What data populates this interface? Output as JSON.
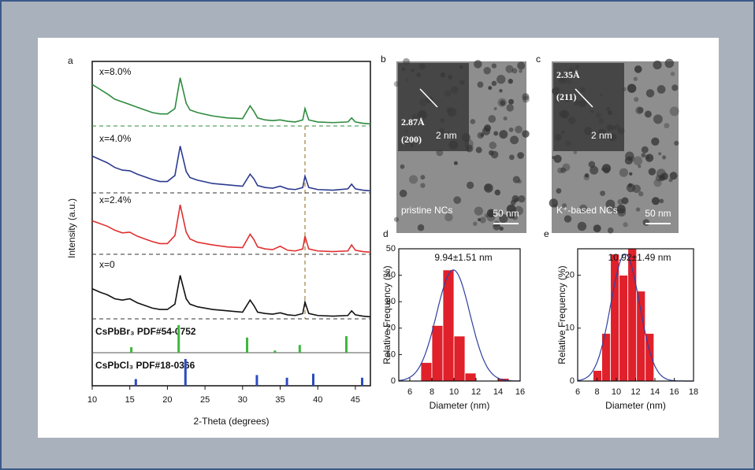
{
  "chart_data": [
    {
      "type": "line",
      "panel_label": "a",
      "x_label": "2-Theta (degrees)",
      "y_label": "Intensity (a.u.)",
      "xlim": [
        10,
        47
      ],
      "xticks": [
        10,
        15,
        20,
        25,
        30,
        35,
        40,
        45
      ],
      "ylim": [
        0,
        100
      ],
      "x": [
        10,
        11,
        12,
        13,
        14,
        15,
        16,
        17,
        18,
        19,
        20,
        21,
        21.7,
        22.5,
        23,
        24,
        26,
        28,
        30,
        31,
        31.5,
        32,
        33,
        34,
        35,
        36,
        37,
        38,
        38.3,
        38.8,
        40,
        42,
        44,
        44.5,
        45,
        46,
        47
      ],
      "marker_line_x": 38.3,
      "series": [
        {
          "name": "x=8.0%",
          "color": "#2e8b3e",
          "values": [
            62,
            55,
            48,
            40,
            36,
            32,
            28,
            24,
            20,
            18,
            18,
            26,
            72,
            34,
            24,
            20,
            15,
            12,
            11,
            30,
            22,
            12,
            9,
            8,
            9,
            7,
            6,
            9,
            26,
            9,
            6,
            5,
            6,
            12,
            6,
            4,
            3
          ]
        },
        {
          "name": "x=4.0%",
          "color": "#2c3a8f",
          "values": [
            55,
            50,
            45,
            38,
            34,
            33,
            28,
            24,
            20,
            17,
            17,
            26,
            70,
            32,
            23,
            19,
            14,
            12,
            10,
            28,
            21,
            11,
            8,
            7,
            10,
            6,
            5,
            8,
            25,
            8,
            5,
            4,
            6,
            13,
            6,
            4,
            3
          ]
        },
        {
          "name": "x=2.4%",
          "color": "#e03030",
          "values": [
            50,
            46,
            42,
            36,
            32,
            33,
            27,
            23,
            19,
            16,
            16,
            28,
            74,
            33,
            23,
            18,
            14,
            11,
            10,
            30,
            22,
            11,
            8,
            7,
            12,
            6,
            5,
            8,
            27,
            8,
            5,
            4,
            5,
            14,
            6,
            4,
            3
          ]
        },
        {
          "name": "x=0",
          "color": "#111111",
          "values": [
            45,
            40,
            36,
            30,
            28,
            30,
            24,
            20,
            16,
            14,
            14,
            22,
            65,
            30,
            22,
            18,
            14,
            12,
            10,
            28,
            20,
            10,
            8,
            7,
            9,
            6,
            5,
            8,
            25,
            8,
            5,
            4,
            5,
            12,
            6,
            4,
            3
          ]
        }
      ],
      "reference_patterns": [
        {
          "name": "CsPbBr₃ PDF#54-0752",
          "color": "#3cb83c",
          "positions": [
            15.2,
            21.5,
            30.6,
            34.3,
            37.6,
            43.8
          ],
          "heights": [
            20,
            100,
            55,
            8,
            28,
            60
          ]
        },
        {
          "name": "CsPbCl₃ PDF#18-0366",
          "color": "#2c4bc0",
          "positions": [
            15.8,
            22.4,
            31.9,
            35.9,
            39.4,
            45.9
          ],
          "heights": [
            25,
            100,
            40,
            30,
            45,
            30
          ]
        }
      ]
    },
    {
      "type": "histogram",
      "panel_label": "d",
      "x_label": "Diameter (nm)",
      "y_label": "Relative Frequency (%)",
      "annotation": "9.94±1.51 nm",
      "xlim": [
        5,
        16
      ],
      "xticks": [
        6,
        8,
        10,
        12,
        14,
        16
      ],
      "ylim": [
        0,
        50
      ],
      "yticks": [
        0,
        10,
        20,
        30,
        40,
        50
      ],
      "bins": [
        7,
        8,
        9,
        10,
        11,
        12,
        13,
        14,
        15
      ],
      "counts": [
        7,
        21,
        42,
        17,
        3,
        0,
        0,
        1
      ],
      "color": "#e0202a",
      "fit": {
        "mean": 9.94,
        "sd": 1.51,
        "peak": 42
      }
    },
    {
      "type": "histogram",
      "panel_label": "e",
      "x_label": "Diameter (nm)",
      "y_label": "Relative Frequency (%)",
      "annotation": "10.92±1.49 nm",
      "xlim": [
        6,
        18
      ],
      "xticks": [
        6,
        8,
        10,
        12,
        14,
        16,
        18
      ],
      "ylim": [
        0,
        25
      ],
      "yticks": [
        0,
        10,
        20
      ],
      "bins": [
        7.6,
        8.5,
        9.4,
        10.3,
        11.2,
        12.1,
        13.0,
        13.9
      ],
      "counts": [
        2,
        9,
        24,
        20,
        25,
        17,
        9
      ],
      "color": "#e0202a",
      "fit": {
        "mean": 10.92,
        "sd": 1.49,
        "peak": 24
      }
    }
  ],
  "micrographs": [
    {
      "panel_label": "b",
      "spacing": "2.87Å",
      "plane": "(200)",
      "inset_scale": "2 nm",
      "caption": "pristine NCs",
      "scale": "50 nm"
    },
    {
      "panel_label": "c",
      "spacing": "2.35Å",
      "plane": "(211)",
      "inset_scale": "2 nm",
      "caption": "K⁺-based NCs",
      "scale": "50 nm"
    }
  ]
}
